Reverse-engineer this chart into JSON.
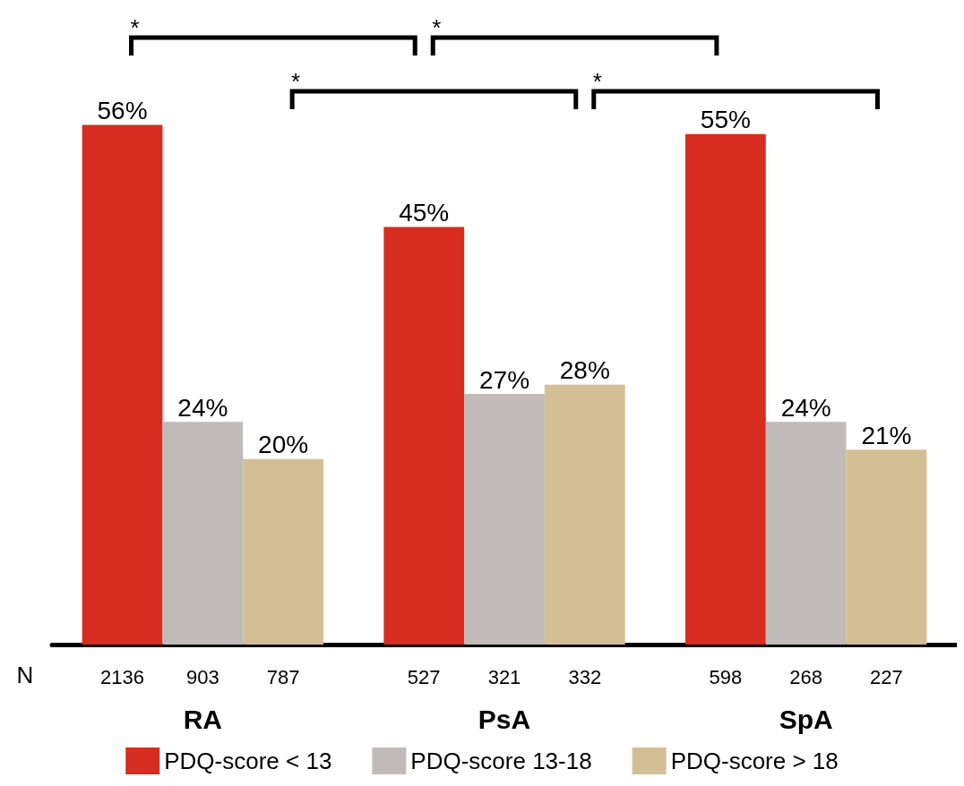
{
  "chart_data": {
    "type": "bar",
    "categories": [
      "RA",
      "PsA",
      "SpA"
    ],
    "series": [
      {
        "name": "PDQ-score < 13",
        "color": "#d62d20",
        "values": [
          56,
          45,
          55
        ],
        "value_labels": [
          "56%",
          "45%",
          "55%"
        ]
      },
      {
        "name": "PDQ-score 13-18",
        "color": "#c0bbb8",
        "values": [
          24,
          27,
          24
        ],
        "value_labels": [
          "24%",
          "27%",
          "24%"
        ]
      },
      {
        "name": "PDQ-score > 18",
        "color": "#d4bf94",
        "values": [
          20,
          28,
          21
        ],
        "value_labels": [
          "20%",
          "28%",
          "21%"
        ]
      }
    ],
    "annotations": [
      "*",
      "*",
      "*",
      "*",
      "N",
      "2136",
      "903",
      "787",
      "527",
      "321",
      "332",
      "598",
      "268",
      "227"
    ],
    "legend": "bottom"
  }
}
